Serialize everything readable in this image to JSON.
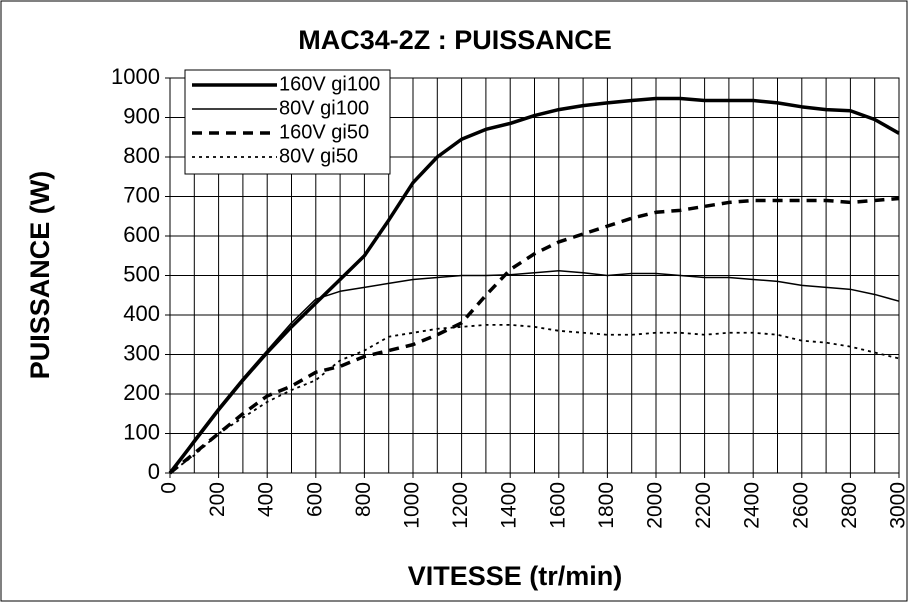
{
  "chart_data": {
    "type": "line",
    "title": "MAC34-2Z : PUISSANCE",
    "x_label": "VITESSE (tr/min)",
    "y_label": "PUISSANCE (W)",
    "x": [
      0,
      100,
      200,
      300,
      400,
      500,
      600,
      700,
      800,
      900,
      1000,
      1100,
      1200,
      1300,
      1400,
      1500,
      1600,
      1700,
      1800,
      1900,
      2000,
      2100,
      2200,
      2300,
      2400,
      2500,
      2600,
      2700,
      2800,
      2900,
      3000
    ],
    "series": [
      {
        "name": "160V gi100",
        "color": "#000000",
        "width": 3.5,
        "dash": "none",
        "values": [
          0,
          80,
          160,
          235,
          305,
          370,
          430,
          490,
          550,
          640,
          735,
          800,
          845,
          870,
          885,
          905,
          920,
          930,
          937,
          943,
          948,
          948,
          943,
          943,
          943,
          937,
          927,
          920,
          917,
          895,
          860
        ]
      },
      {
        "name": "80V gi100",
        "color": "#000000",
        "width": 1.5,
        "dash": "none",
        "values": [
          0,
          85,
          165,
          240,
          310,
          380,
          440,
          460,
          470,
          480,
          490,
          495,
          500,
          500,
          502,
          507,
          512,
          507,
          500,
          505,
          505,
          500,
          495,
          495,
          490,
          485,
          475,
          470,
          465,
          452,
          435
        ]
      },
      {
        "name": "160V gi50",
        "color": "#000000",
        "width": 3.5,
        "dash": "10 7",
        "values": [
          0,
          50,
          100,
          150,
          195,
          220,
          255,
          270,
          295,
          310,
          325,
          350,
          380,
          450,
          515,
          555,
          585,
          605,
          625,
          645,
          660,
          665,
          675,
          685,
          690,
          690,
          690,
          690,
          685,
          690,
          695
        ]
      },
      {
        "name": "80V gi50",
        "color": "#000000",
        "width": 1.8,
        "dash": "3 4",
        "values": [
          0,
          45,
          100,
          140,
          180,
          210,
          235,
          285,
          310,
          345,
          355,
          365,
          370,
          375,
          375,
          370,
          360,
          355,
          350,
          350,
          355,
          355,
          350,
          355,
          355,
          350,
          335,
          330,
          320,
          305,
          290
        ]
      }
    ],
    "xlim": [
      0,
      3000
    ],
    "ylim": [
      0,
      1000
    ],
    "xticks": [
      0,
      200,
      400,
      600,
      800,
      1000,
      1200,
      1400,
      1600,
      1800,
      2000,
      2200,
      2400,
      2600,
      2800,
      3000
    ],
    "x_minor_ticks": [
      100,
      300,
      500,
      700,
      900,
      1100,
      1300,
      1500,
      1700,
      1900,
      2100,
      2300,
      2500,
      2700,
      2900
    ],
    "yticks": [
      0,
      100,
      200,
      300,
      400,
      500,
      600,
      700,
      800,
      900,
      1000
    ],
    "grid": true,
    "legend": "upper left"
  }
}
